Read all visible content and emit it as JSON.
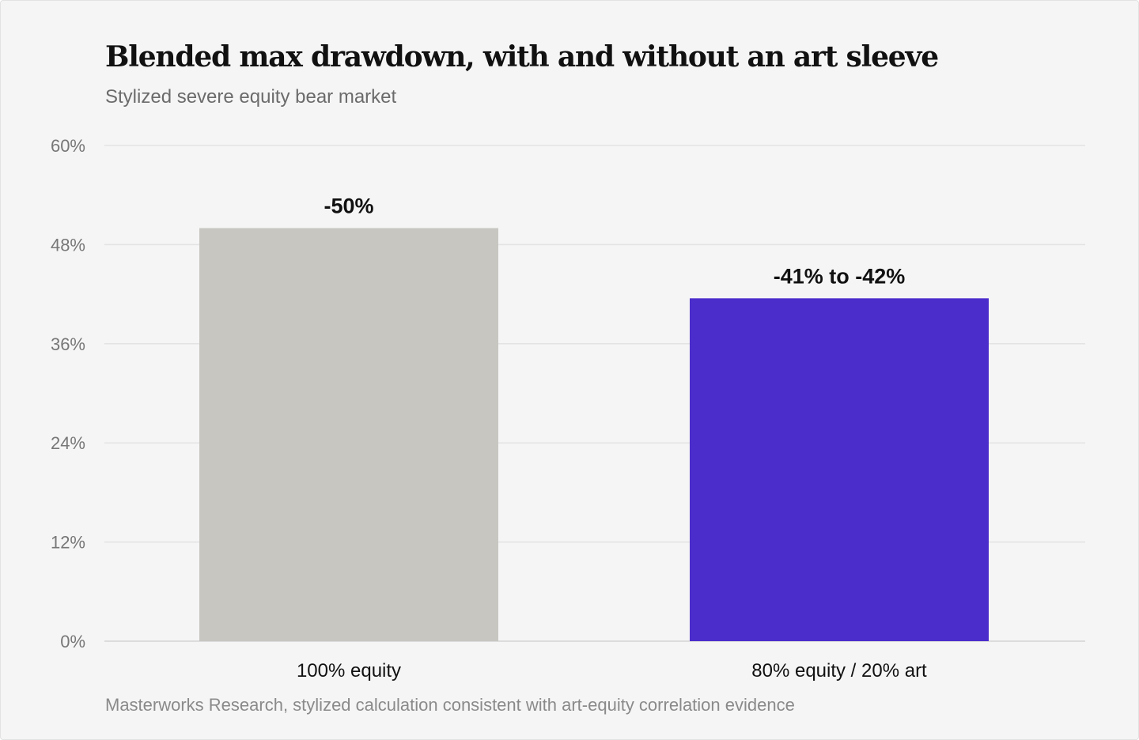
{
  "chart_data": {
    "type": "bar",
    "title": "Blended max drawdown, with and without an art sleeve",
    "subtitle": "Stylized severe equity bear market",
    "source": "Masterworks Research, stylized calculation consistent with art-equity correlation evidence",
    "categories": [
      "100% equity",
      "80% equity / 20% art"
    ],
    "values": [
      50,
      41.5
    ],
    "data_labels": [
      "-50%",
      "-41% to -42%"
    ],
    "colors": [
      "#c7c6c1",
      "#4b2dcc"
    ],
    "ylim": [
      0,
      60
    ],
    "yticks": [
      0,
      12,
      24,
      36,
      48,
      60
    ],
    "ytick_labels": [
      "0%",
      "12%",
      "24%",
      "36%",
      "48%",
      "60%"
    ],
    "grid": true,
    "legend": "none"
  }
}
